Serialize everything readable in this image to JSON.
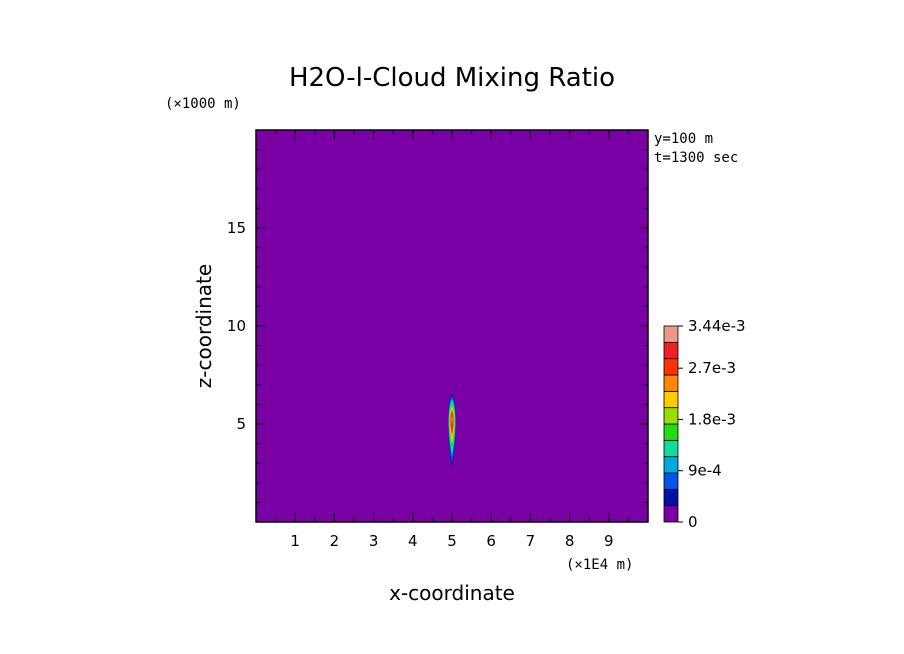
{
  "chart_data": {
    "type": "heatmap",
    "title": "H2O-l-Cloud Mixing Ratio",
    "xlabel": "x-coordinate",
    "ylabel": "z-coordinate",
    "x_unit": "(×1E4 m)",
    "y_unit": "(×1000 m)",
    "info": [
      "y=100 m",
      "t=1300 sec"
    ],
    "xlim": [
      0,
      10
    ],
    "ylim": [
      0,
      20
    ],
    "x_ticks": [
      1,
      2,
      3,
      4,
      5,
      6,
      7,
      8,
      9
    ],
    "y_ticks": [
      5,
      10,
      15
    ],
    "background_color": "#7a00a6",
    "colorbar": {
      "levels": [
        0,
        0.00045,
        0.0009,
        0.00135,
        0.0018,
        0.00225,
        0.0027,
        0.00315,
        0.00344
      ],
      "labels": [
        "0",
        "9e-4",
        "1.8e-3",
        "2.7e-3",
        "3.44e-3"
      ],
      "label_values": [
        0,
        0.0009,
        0.0018,
        0.0027,
        0.00344
      ],
      "colors": [
        "#7a00a6",
        "#0011a8",
        "#0055ee",
        "#00aadd",
        "#11dd99",
        "#22dd11",
        "#99dd00",
        "#ffcc00",
        "#ff8800",
        "#ff3300",
        "#ee2222",
        "#ee9988"
      ]
    },
    "plume": {
      "x_center": 5.0,
      "z_bottom": 2.8,
      "z_top": 6.5,
      "z_peak": 5.2,
      "max_value": 0.00344,
      "contours": [
        {
          "color": "#0011a8",
          "half_width": 0.14,
          "z_bottom": 2.8,
          "z_top": 6.55
        },
        {
          "color": "#0055ee",
          "half_width": 0.13,
          "z_bottom": 3.0,
          "z_top": 6.45
        },
        {
          "color": "#00aadd",
          "half_width": 0.12,
          "z_bottom": 3.3,
          "z_top": 6.3
        },
        {
          "color": "#11dd99",
          "half_width": 0.11,
          "z_bottom": 3.5,
          "z_top": 6.2
        },
        {
          "color": "#22dd11",
          "half_width": 0.1,
          "z_bottom": 3.7,
          "z_top": 6.05
        },
        {
          "color": "#99dd00",
          "half_width": 0.09,
          "z_bottom": 3.9,
          "z_top": 5.95
        },
        {
          "color": "#ffcc00",
          "half_width": 0.08,
          "z_bottom": 4.1,
          "z_top": 5.85
        },
        {
          "color": "#ff8800",
          "half_width": 0.065,
          "z_bottom": 4.3,
          "z_top": 5.75
        },
        {
          "color": "#ff3300",
          "half_width": 0.05,
          "z_bottom": 4.5,
          "z_top": 5.65
        },
        {
          "color": "#ee2222",
          "half_width": 0.035,
          "z_bottom": 4.7,
          "z_top": 5.55
        },
        {
          "color": "#ee9988",
          "half_width": 0.02,
          "z_bottom": 5.0,
          "z_top": 5.4
        }
      ]
    }
  }
}
